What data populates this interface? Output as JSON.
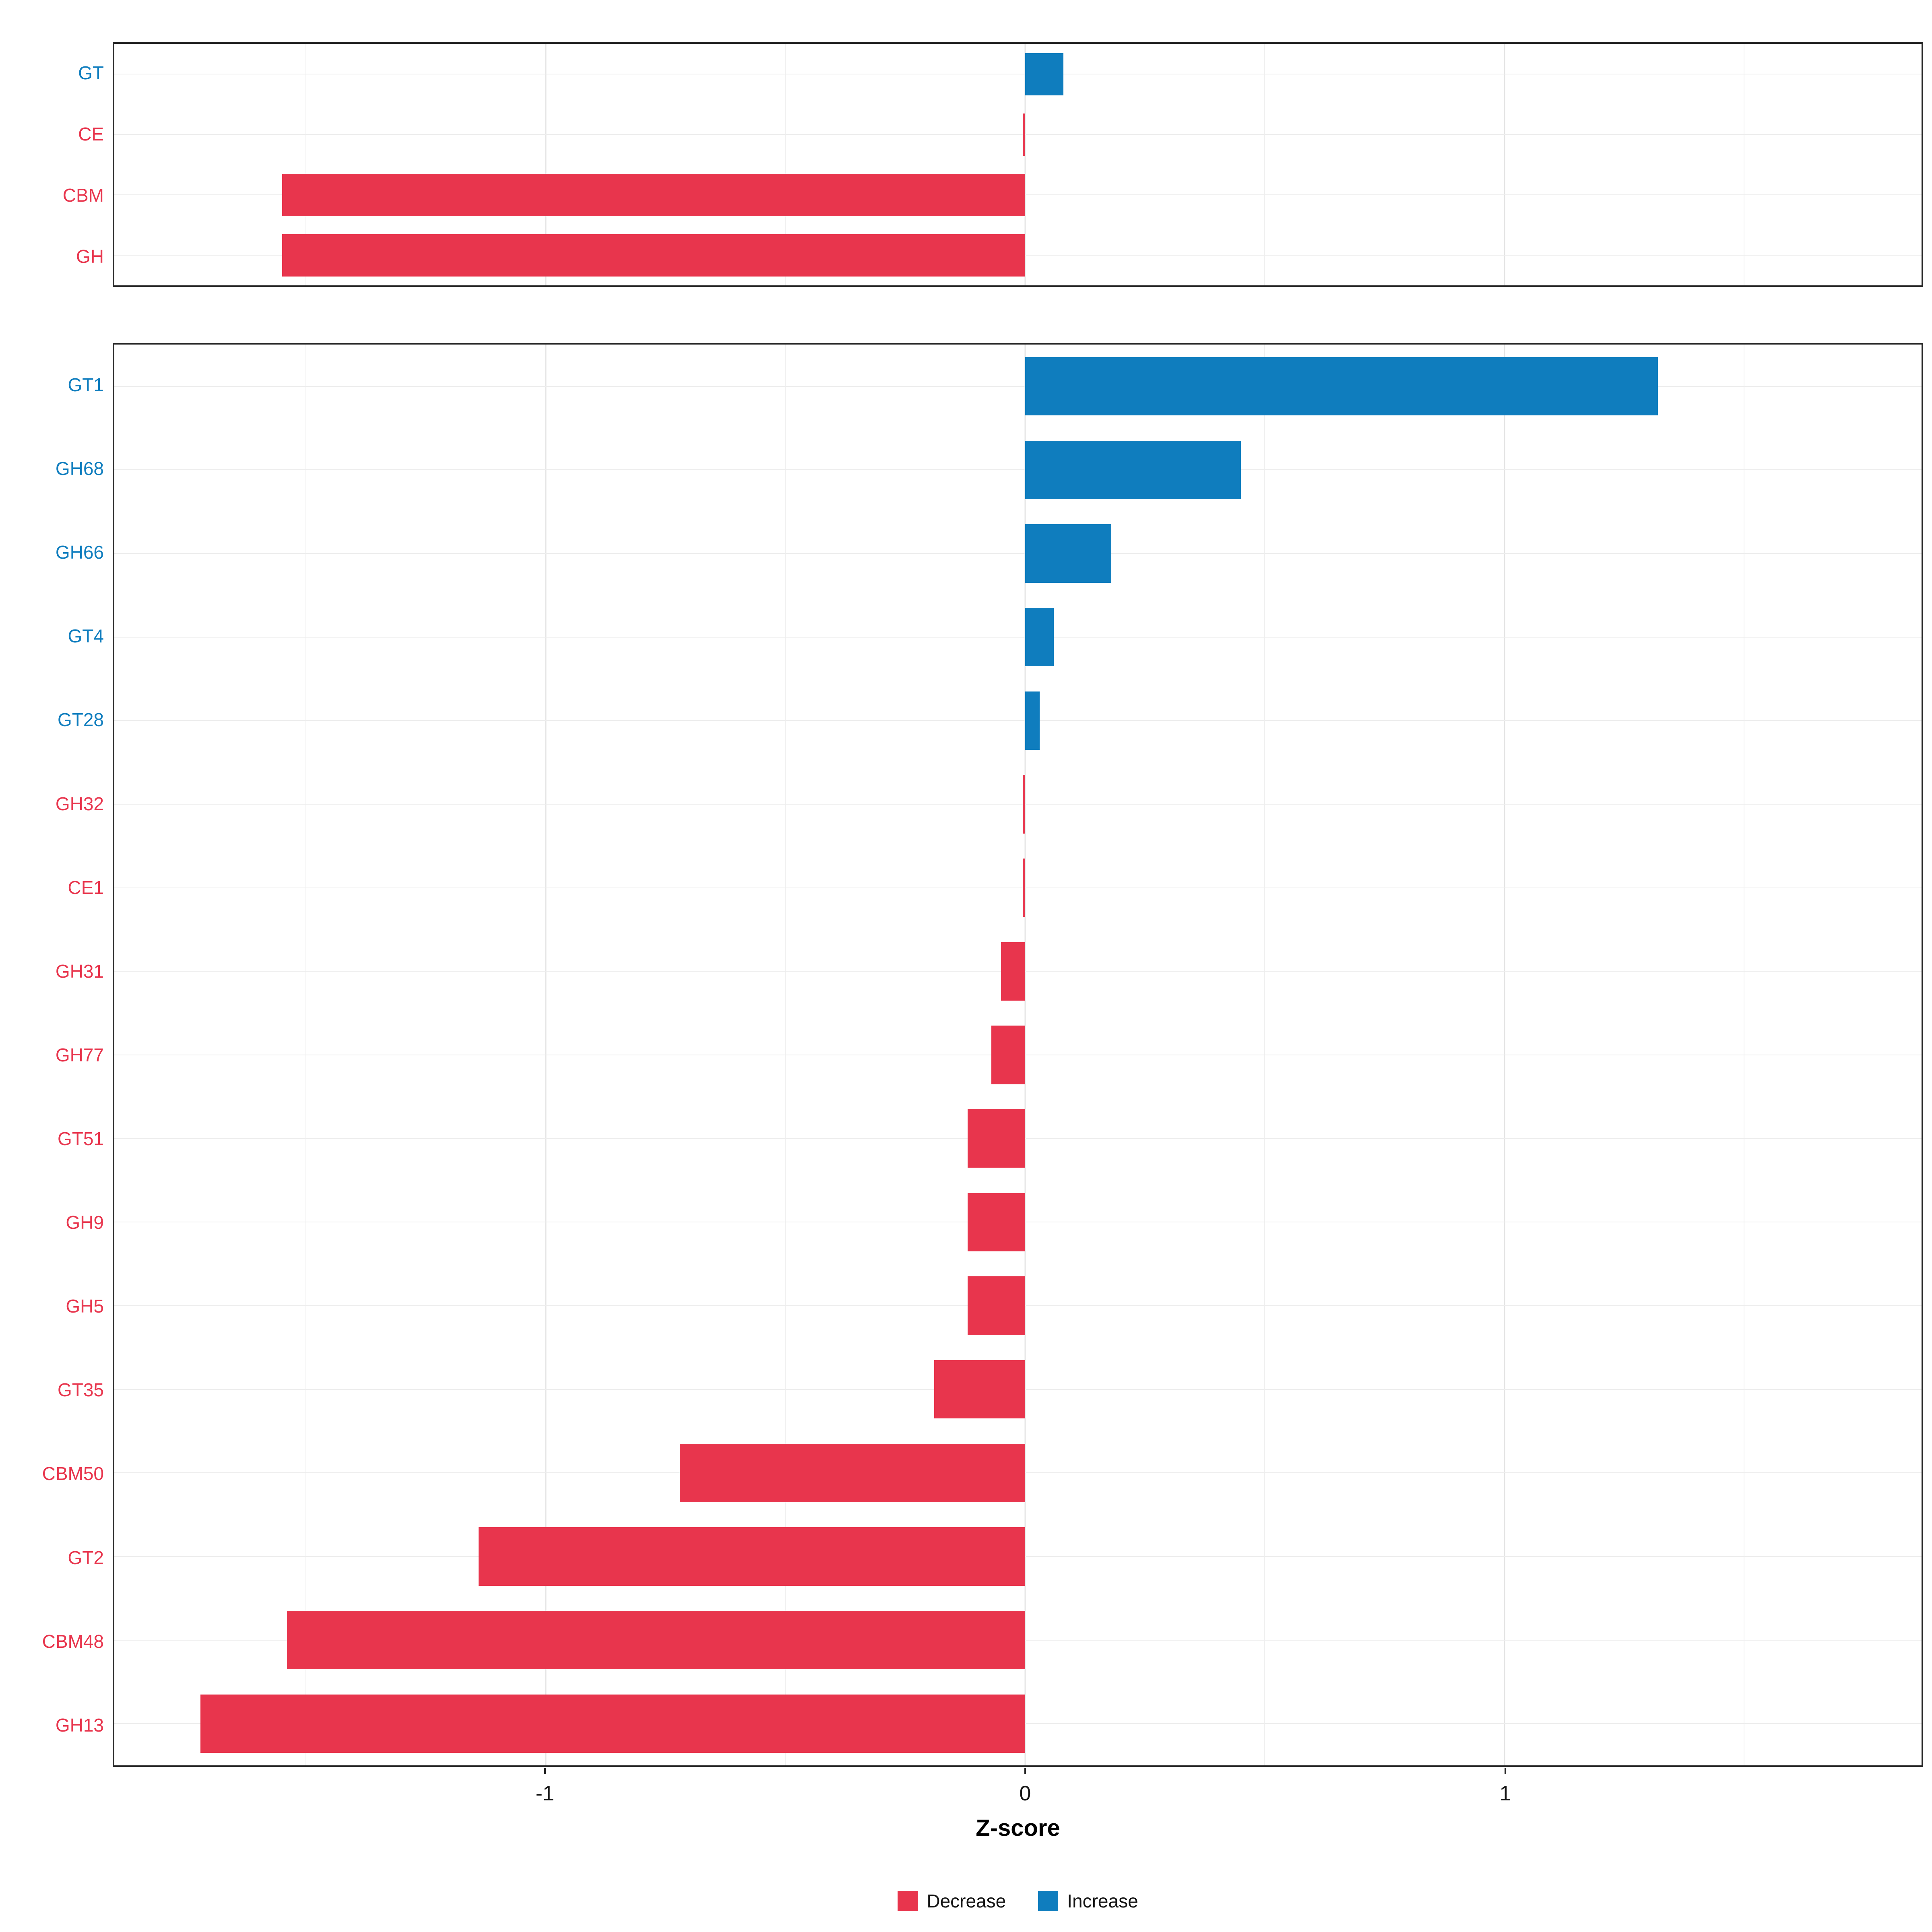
{
  "figure": {
    "xlabel": "Z-score"
  },
  "axis": {
    "min": -1.9,
    "max": 1.87,
    "ticks": [
      {
        "value": -1,
        "label": "-1"
      },
      {
        "value": 0,
        "label": "0"
      },
      {
        "value": 1,
        "label": "1"
      }
    ],
    "minor_ticks": [
      -1.5,
      -0.5,
      0.5,
      1.5
    ]
  },
  "colors": {
    "decrease": "#E8354D",
    "increase": "#0F7DBE",
    "grid": "#ededed",
    "border": "#262626"
  },
  "legend": {
    "items": [
      {
        "label": "Decrease",
        "key": "decrease"
      },
      {
        "label": "Increase",
        "key": "increase"
      }
    ]
  },
  "chart_data": [
    {
      "type": "bar",
      "orientation": "horizontal",
      "panel": "top",
      "xlabel": "Z-score",
      "xlim": [
        -1.9,
        1.87
      ],
      "bars": [
        {
          "category": "GT",
          "value": 0.08,
          "direction": "increase"
        },
        {
          "category": "CE",
          "value": -0.005,
          "direction": "decrease"
        },
        {
          "category": "CBM",
          "value": -1.55,
          "direction": "decrease"
        },
        {
          "category": "GH",
          "value": -1.55,
          "direction": "decrease"
        }
      ]
    },
    {
      "type": "bar",
      "orientation": "horizontal",
      "panel": "bottom",
      "xlabel": "Z-score",
      "xlim": [
        -1.9,
        1.87
      ],
      "bars": [
        {
          "category": "GT1",
          "value": 1.32,
          "direction": "increase"
        },
        {
          "category": "GH68",
          "value": 0.45,
          "direction": "increase"
        },
        {
          "category": "GH66",
          "value": 0.18,
          "direction": "increase"
        },
        {
          "category": "GT4",
          "value": 0.06,
          "direction": "increase"
        },
        {
          "category": "GT28",
          "value": 0.03,
          "direction": "increase"
        },
        {
          "category": "GH32",
          "value": -0.005,
          "direction": "decrease"
        },
        {
          "category": "CE1",
          "value": -0.005,
          "direction": "decrease"
        },
        {
          "category": "GH31",
          "value": -0.05,
          "direction": "decrease"
        },
        {
          "category": "GH77",
          "value": -0.07,
          "direction": "decrease"
        },
        {
          "category": "GT51",
          "value": -0.12,
          "direction": "decrease"
        },
        {
          "category": "GH9",
          "value": -0.12,
          "direction": "decrease"
        },
        {
          "category": "GH5",
          "value": -0.12,
          "direction": "decrease"
        },
        {
          "category": "GT35",
          "value": -0.19,
          "direction": "decrease"
        },
        {
          "category": "CBM50",
          "value": -0.72,
          "direction": "decrease"
        },
        {
          "category": "GT2",
          "value": -1.14,
          "direction": "decrease"
        },
        {
          "category": "CBM48",
          "value": -1.54,
          "direction": "decrease"
        },
        {
          "category": "GH13",
          "value": -1.72,
          "direction": "decrease"
        }
      ]
    }
  ]
}
